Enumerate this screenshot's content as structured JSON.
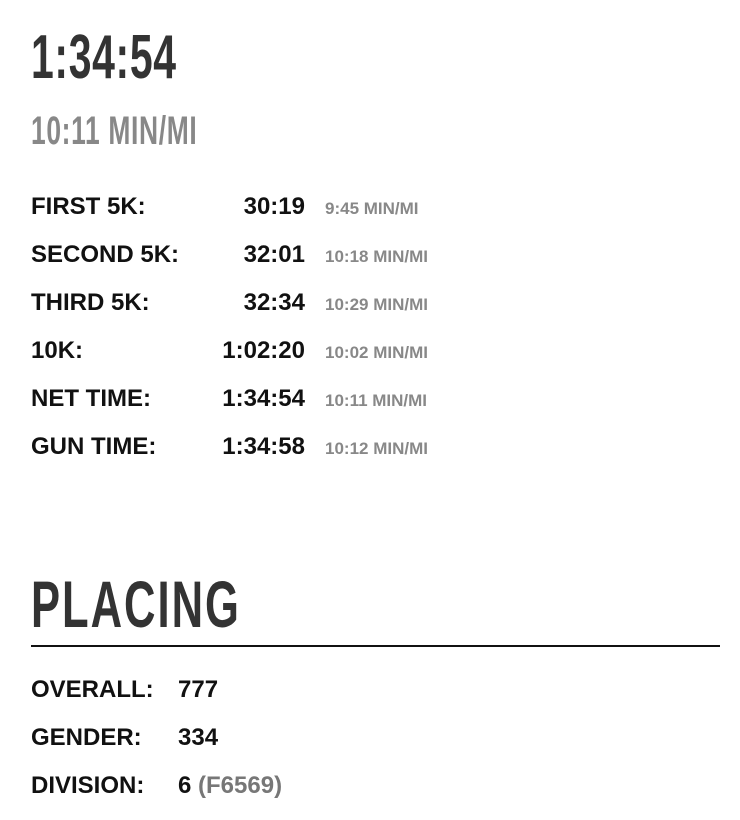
{
  "summary": {
    "time": "1:34:54",
    "pace": "10:11 MIN/MI"
  },
  "splits": [
    {
      "label": "FIRST 5K:",
      "time": "30:19",
      "pace": "9:45 MIN/MI"
    },
    {
      "label": "SECOND 5K:",
      "time": "32:01",
      "pace": "10:18 MIN/MI"
    },
    {
      "label": "THIRD 5K:",
      "time": "32:34",
      "pace": "10:29 MIN/MI"
    },
    {
      "label": "10K:",
      "time": "1:02:20",
      "pace": "10:02 MIN/MI"
    },
    {
      "label": "NET TIME:",
      "time": "1:34:54",
      "pace": "10:11 MIN/MI"
    },
    {
      "label": "GUN TIME:",
      "time": "1:34:58",
      "pace": "10:12 MIN/MI"
    }
  ],
  "placing": {
    "title": "PLACING",
    "overall": {
      "label": "OVERALL:",
      "value": "777"
    },
    "gender": {
      "label": "GENDER:",
      "value": "334"
    },
    "division": {
      "label": "DIVISION:",
      "value": "6",
      "code": "(F6569)"
    }
  }
}
